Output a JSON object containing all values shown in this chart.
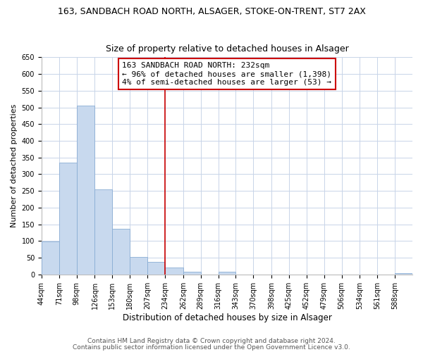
{
  "title": "163, SANDBACH ROAD NORTH, ALSAGER, STOKE-ON-TRENT, ST7 2AX",
  "subtitle": "Size of property relative to detached houses in Alsager",
  "xlabel": "Distribution of detached houses by size in Alsager",
  "ylabel": "Number of detached properties",
  "bar_edges": [
    44,
    71,
    98,
    126,
    153,
    180,
    207,
    234,
    262,
    289,
    316,
    343,
    370,
    398,
    425,
    452,
    479,
    506,
    534,
    561,
    588
  ],
  "bar_heights": [
    98,
    335,
    505,
    255,
    137,
    53,
    38,
    20,
    8,
    0,
    9,
    0,
    0,
    0,
    0,
    0,
    0,
    0,
    0,
    0,
    3
  ],
  "bar_color": "#c8d9ee",
  "bar_edge_color": "#8aadd4",
  "property_line_x": 234,
  "property_line_color": "#cc0000",
  "ylim": [
    0,
    650
  ],
  "yticks": [
    0,
    50,
    100,
    150,
    200,
    250,
    300,
    350,
    400,
    450,
    500,
    550,
    600,
    650
  ],
  "xtick_labels": [
    "44sqm",
    "71sqm",
    "98sqm",
    "126sqm",
    "153sqm",
    "180sqm",
    "207sqm",
    "234sqm",
    "262sqm",
    "289sqm",
    "316sqm",
    "343sqm",
    "370sqm",
    "398sqm",
    "425sqm",
    "452sqm",
    "479sqm",
    "506sqm",
    "534sqm",
    "561sqm",
    "588sqm"
  ],
  "annotation_title": "163 SANDBACH ROAD NORTH: 232sqm",
  "annotation_line1": "← 96% of detached houses are smaller (1,398)",
  "annotation_line2": "4% of semi-detached houses are larger (53) →",
  "annotation_box_color": "#ffffff",
  "annotation_box_edge": "#cc0000",
  "footnote1": "Contains HM Land Registry data © Crown copyright and database right 2024.",
  "footnote2": "Contains public sector information licensed under the Open Government Licence v3.0.",
  "bg_color": "#ffffff",
  "grid_color": "#c8d4e8",
  "title_fontsize": 9,
  "subtitle_fontsize": 9,
  "xlabel_fontsize": 8.5,
  "ylabel_fontsize": 8,
  "tick_fontsize": 7,
  "annotation_fontsize": 8,
  "footnote_fontsize": 6.5
}
